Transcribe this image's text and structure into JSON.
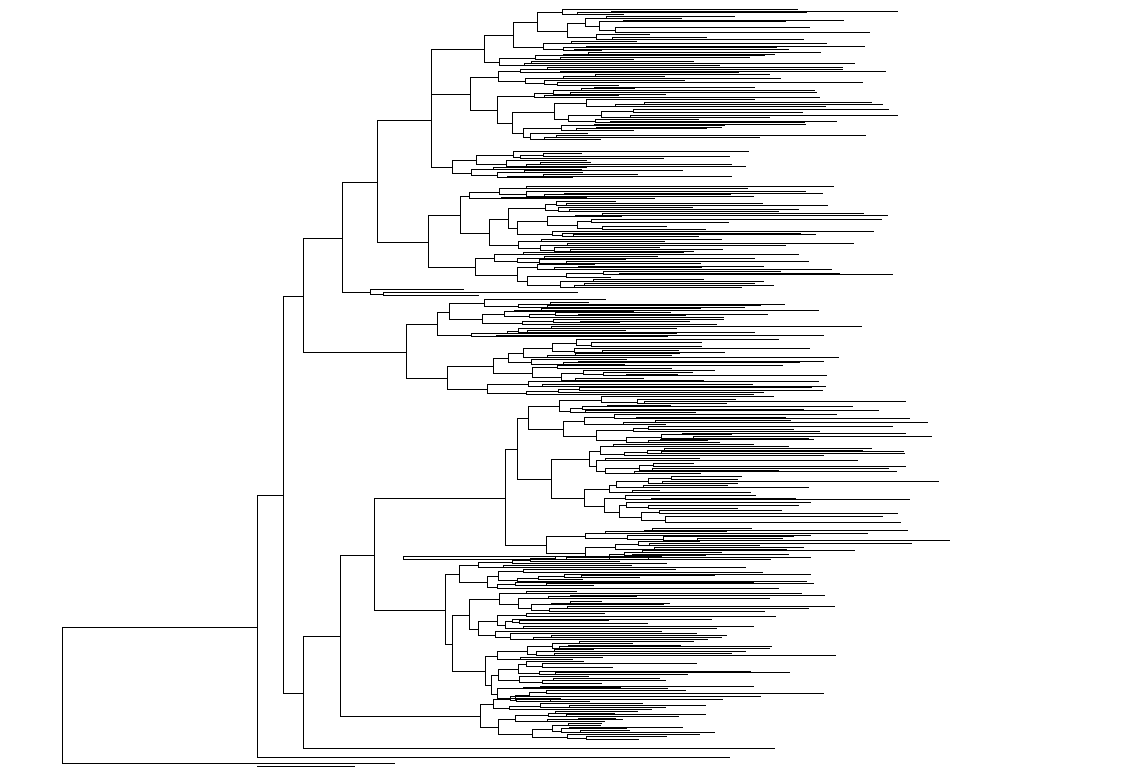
{
  "figure": {
    "type": "phylogenetic-tree",
    "orientation": "left-to-right",
    "style": "rectangular cladogram",
    "tip_labels_shown": false,
    "line_color": "#000000",
    "background_color": "#ffffff"
  }
}
